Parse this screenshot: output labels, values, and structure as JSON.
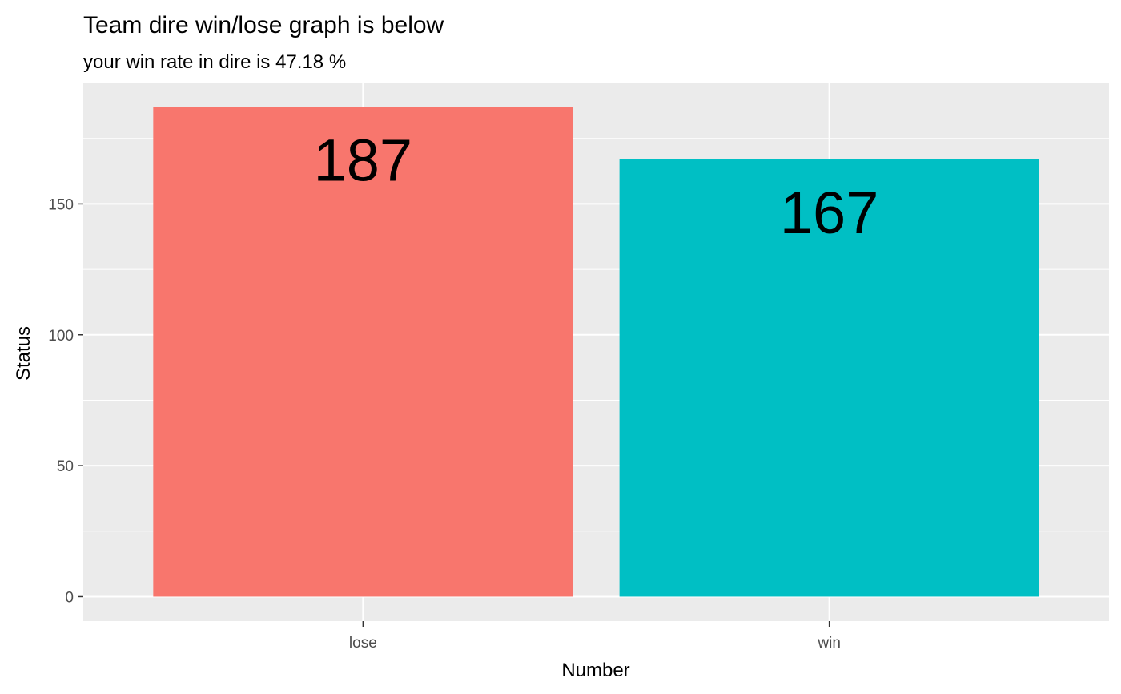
{
  "chart_data": {
    "type": "bar",
    "title": "Team dire win/lose graph is below",
    "subtitle": "your win rate in dire is 47.18 %",
    "xlabel": "Number",
    "ylabel": "Status",
    "categories": [
      "lose",
      "win"
    ],
    "values": [
      187,
      167
    ],
    "data_labels": [
      "187",
      "167"
    ],
    "bar_colors": [
      "#F8766D",
      "#00BFC4"
    ],
    "ylim": [
      -9.35,
      196.35
    ],
    "yticks": [
      0,
      50,
      100,
      150
    ],
    "ytick_labels": [
      "0",
      "50",
      "100",
      "150"
    ],
    "grid": true,
    "panel_background": "#EBEBEB",
    "legend": "none"
  }
}
